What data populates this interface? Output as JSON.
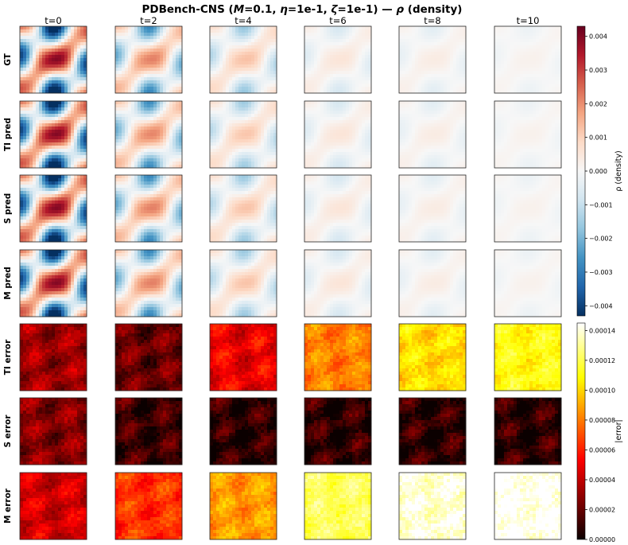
{
  "title_parts": {
    "prefix": "PDBench-CNS (",
    "m_sym": "M",
    "m_val": "=0.1, ",
    "eta_sym": "η",
    "eta_val": "=1e-1, ",
    "zeta_sym": "ζ",
    "zeta_val": "=1e-1)",
    "sep": "  —  ",
    "rho_sym": "ρ",
    "suffix": " (density)"
  },
  "chart_data": {
    "type": "heatmap",
    "columns": [
      "t=0",
      "t=2",
      "t=4",
      "t=6",
      "t=8",
      "t=10"
    ],
    "rows": [
      {
        "label": "GT",
        "kind": "field",
        "amplitude": [
          1.0,
          0.55,
          0.32,
          0.14,
          0.09,
          0.05
        ]
      },
      {
        "label": "TI pred",
        "kind": "field",
        "amplitude": [
          1.0,
          0.53,
          0.3,
          0.14,
          0.09,
          0.05
        ]
      },
      {
        "label": "S pred",
        "kind": "field",
        "amplitude": [
          1.0,
          0.55,
          0.31,
          0.14,
          0.09,
          0.05
        ]
      },
      {
        "label": "M pred",
        "kind": "field",
        "amplitude": [
          1.0,
          0.55,
          0.31,
          0.14,
          0.09,
          0.05
        ]
      },
      {
        "label": "TI error",
        "kind": "error",
        "level": [
          0.22,
          0.14,
          0.34,
          0.56,
          0.7,
          0.76
        ]
      },
      {
        "label": "S error",
        "kind": "error",
        "level": [
          0.18,
          0.07,
          0.05,
          0.05,
          0.05,
          0.05
        ]
      },
      {
        "label": "M error",
        "kind": "error",
        "level": [
          0.3,
          0.44,
          0.6,
          0.84,
          0.96,
          0.99
        ]
      }
    ],
    "field_colorbar": {
      "label": "ρ (density)",
      "colormap": "RdBu_r",
      "range": [
        -0.0043,
        0.0043
      ],
      "ticks": [
        "0.004",
        "0.003",
        "0.002",
        "0.001",
        "0.000",
        "−0.001",
        "−0.002",
        "−0.003",
        "−0.004"
      ],
      "tick_values": [
        0.004,
        0.003,
        0.002,
        0.001,
        0.0,
        -0.001,
        -0.002,
        -0.003,
        -0.004
      ]
    },
    "error_colorbar": {
      "label": "|error|",
      "colormap": "hot",
      "range": [
        0,
        0.000145
      ],
      "ticks": [
        "0.00014",
        "0.00012",
        "0.00010",
        "0.00008",
        "0.00006",
        "0.00004",
        "0.00002",
        "0.00000"
      ],
      "tick_values": [
        0.00014,
        0.00012,
        0.0001,
        8e-05,
        6e-05,
        4e-05,
        2e-05,
        0.0
      ]
    }
  }
}
